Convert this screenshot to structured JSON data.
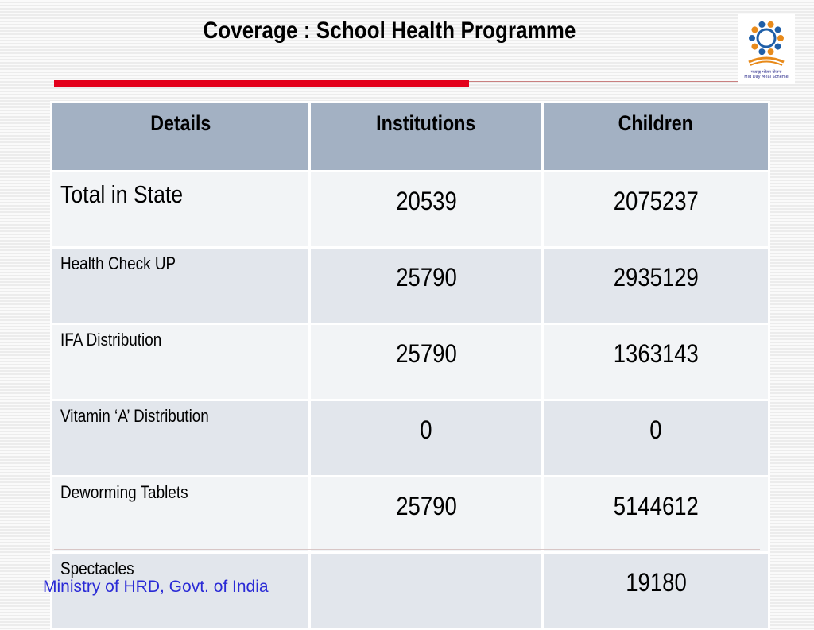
{
  "title": "Coverage : School Health Programme",
  "logo": {
    "icon": "mid-day-meal-logo",
    "line1": "मध्याह्न भोजन योजना",
    "line2": "Mid Day Meal Scheme"
  },
  "table": {
    "headers": [
      "Details",
      "Institutions",
      "Children"
    ],
    "rows": [
      {
        "details": "Total in State",
        "institutions": "20539",
        "children": "2075237"
      },
      {
        "details": "Health Check UP",
        "institutions": "25790",
        "children": "2935129"
      },
      {
        "details": "IFA Distribution",
        "institutions": "25790",
        "children": "1363143"
      },
      {
        "details": "Vitamin ‘A’ Distribution",
        "institutions": "0",
        "children": "0"
      },
      {
        "details": "Deworming Tablets",
        "institutions": "25790",
        "children": "5144612"
      },
      {
        "details": "Spectacles",
        "institutions": "",
        "children": "19180"
      }
    ]
  },
  "footer": "Ministry of HRD, Govt. of India",
  "colors": {
    "accent_red": "#e3001b",
    "header_bg": "#a3b1c3",
    "footer_text": "#2a2ad6"
  }
}
